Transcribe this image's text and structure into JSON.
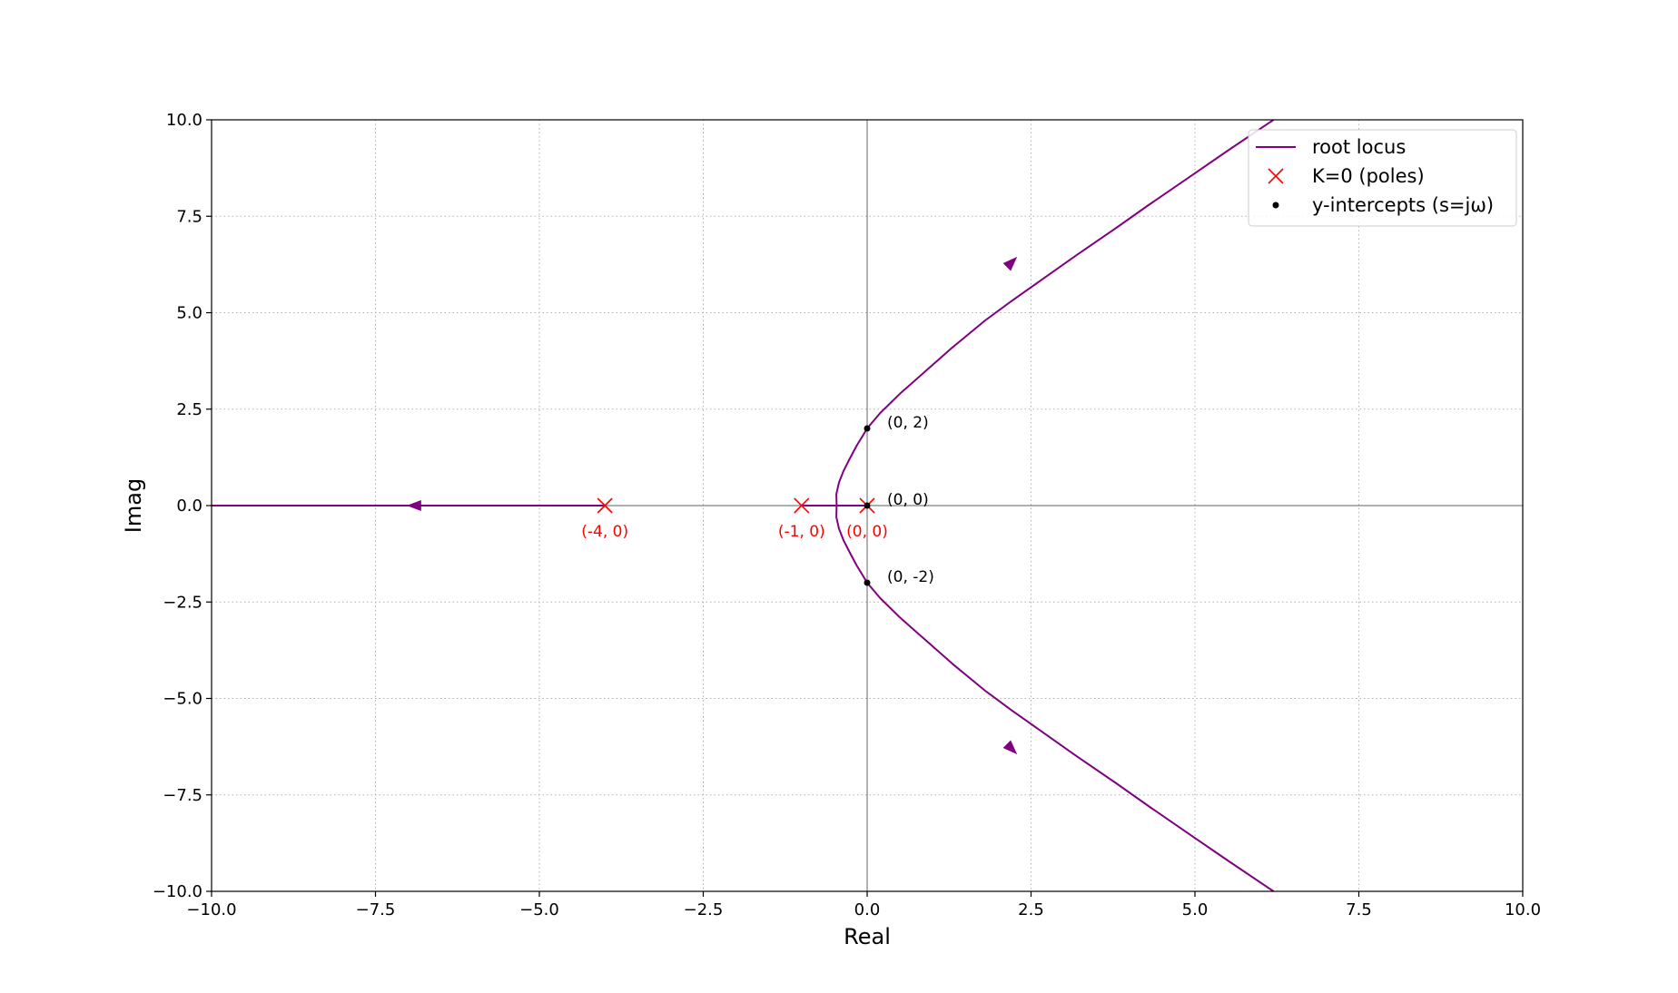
{
  "chart_data": {
    "type": "line",
    "title": "",
    "xlabel": "Real",
    "ylabel": "Imag",
    "xlim": [
      -10,
      10
    ],
    "ylim": [
      -10,
      10
    ],
    "xticks": [
      -10,
      -7.5,
      -5,
      -2.5,
      0,
      2.5,
      5,
      7.5,
      10
    ],
    "yticks": [
      -10,
      -7.5,
      -5,
      -2.5,
      0,
      2.5,
      5,
      7.5,
      10
    ],
    "xtick_labels": [
      "−10.0",
      "−7.5",
      "−5.0",
      "−2.5",
      "0.0",
      "2.5",
      "5.0",
      "7.5",
      "10.0"
    ],
    "ytick_labels": [
      "−10.0",
      "−7.5",
      "−5.0",
      "−2.5",
      "0.0",
      "2.5",
      "5.0",
      "7.5",
      "10.0"
    ],
    "grid": true,
    "grid_style": "dotted",
    "legend_position": "top-right",
    "colors": {
      "locus": "#800080",
      "poles": "#ff0000",
      "intercepts": "#000000",
      "axis_lines": "#808080",
      "grid": "#b0b0b0"
    },
    "legend": [
      {
        "label": "root locus",
        "marker": "line",
        "color": "#800080"
      },
      {
        "label": "K=0 (poles)",
        "marker": "x",
        "color": "#ff0000"
      },
      {
        "label": "y-intercepts (s=jω)",
        "marker": "dot",
        "color": "#000000"
      }
    ],
    "series": [
      {
        "name": "root locus",
        "branches": [
          {
            "points": [
              [
                -4,
                0
              ],
              [
                -5,
                0
              ],
              [
                -6,
                0
              ],
              [
                -7,
                0
              ],
              [
                -8,
                0
              ],
              [
                -9,
                0
              ],
              [
                -10,
                0
              ]
            ],
            "arrow_at": [
              -6.9,
              0
            ],
            "arrow_dir": "left"
          },
          {
            "points": [
              [
                -1,
                0
              ],
              [
                -0.75,
                0
              ],
              [
                -0.465,
                0
              ]
            ]
          },
          {
            "points": [
              [
                0,
                0
              ],
              [
                -0.25,
                0
              ],
              [
                -0.465,
                0
              ]
            ]
          },
          {
            "points": [
              [
                -0.465,
                0
              ],
              [
                -0.47,
                0.3
              ],
              [
                -0.43,
                0.6
              ],
              [
                -0.36,
                0.9
              ],
              [
                -0.27,
                1.2
              ],
              [
                -0.16,
                1.55
              ],
              [
                -0.07,
                1.8
              ],
              [
                0,
                2
              ],
              [
                0.2,
                2.4
              ],
              [
                0.5,
                2.9
              ],
              [
                0.9,
                3.5
              ],
              [
                1.3,
                4.1
              ],
              [
                1.8,
                4.8
              ],
              [
                2.2,
                5.3
              ],
              [
                2.7,
                5.9
              ],
              [
                3.2,
                6.5
              ],
              [
                3.8,
                7.2
              ],
              [
                4.3,
                7.8
              ],
              [
                4.9,
                8.5
              ],
              [
                5.5,
                9.2
              ],
              [
                6.2,
                10
              ]
            ],
            "arrow_at": [
              2.2,
              6.3
            ],
            "arrow_dir": "up"
          },
          {
            "points": [
              [
                -0.465,
                0
              ],
              [
                -0.47,
                -0.3
              ],
              [
                -0.43,
                -0.6
              ],
              [
                -0.36,
                -0.9
              ],
              [
                -0.27,
                -1.2
              ],
              [
                -0.16,
                -1.55
              ],
              [
                -0.07,
                -1.8
              ],
              [
                0,
                -2
              ],
              [
                0.2,
                -2.4
              ],
              [
                0.5,
                -2.9
              ],
              [
                0.9,
                -3.5
              ],
              [
                1.3,
                -4.1
              ],
              [
                1.8,
                -4.8
              ],
              [
                2.2,
                -5.3
              ],
              [
                2.7,
                -5.9
              ],
              [
                3.2,
                -6.5
              ],
              [
                3.8,
                -7.2
              ],
              [
                4.3,
                -7.8
              ],
              [
                4.9,
                -8.5
              ],
              [
                5.5,
                -9.2
              ],
              [
                6.2,
                -10
              ]
            ],
            "arrow_at": [
              2.2,
              -6.3
            ],
            "arrow_dir": "down"
          }
        ]
      },
      {
        "name": "K=0 (poles)",
        "points": [
          {
            "x": -4,
            "y": 0,
            "label": "(-4, 0)"
          },
          {
            "x": -1,
            "y": 0,
            "label": "(-1, 0)"
          },
          {
            "x": 0,
            "y": 0,
            "label": "(0, 0)"
          }
        ]
      },
      {
        "name": "y-intercepts (s=jω)",
        "points": [
          {
            "x": 0,
            "y": 2,
            "label": "(0, 2)"
          },
          {
            "x": 0,
            "y": 0,
            "label": "(0, 0)"
          },
          {
            "x": 0,
            "y": -2,
            "label": "(0, -2)"
          }
        ]
      }
    ]
  }
}
